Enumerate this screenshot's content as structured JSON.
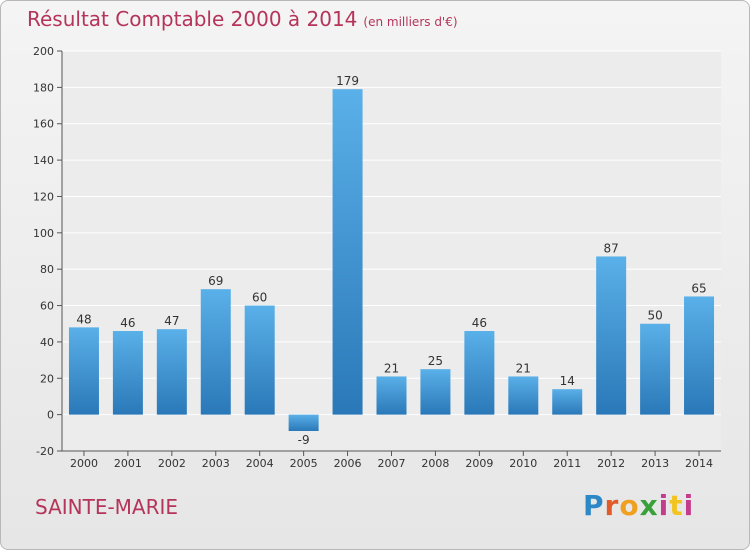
{
  "chart_data": {
    "type": "bar",
    "title": "Résultat Comptable 2000 à 2014",
    "subtitle": "(en milliers d'€)",
    "categories": [
      "2000",
      "2001",
      "2002",
      "2003",
      "2004",
      "2005",
      "2006",
      "2007",
      "2008",
      "2009",
      "2010",
      "2011",
      "2012",
      "2013",
      "2014"
    ],
    "values": [
      48,
      46,
      47,
      69,
      60,
      -9,
      179,
      21,
      25,
      46,
      21,
      14,
      87,
      50,
      65
    ],
    "ylim": [
      -20,
      200
    ],
    "yticks": [
      -20,
      0,
      20,
      40,
      60,
      80,
      100,
      120,
      140,
      160,
      180,
      200
    ],
    "grid": true,
    "bar_color": "#3b8fd0"
  },
  "footer": {
    "commune": "SAINTE-MARIE",
    "logo": "Proxiti"
  }
}
